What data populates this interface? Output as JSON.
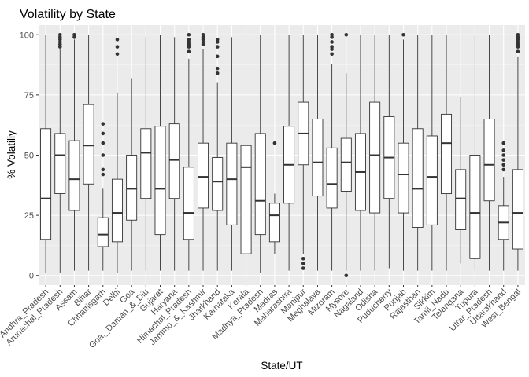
{
  "chart_data": {
    "type": "boxplot",
    "title": "Volatility by State",
    "xlabel": "State/UT",
    "ylabel": "% Volatiliy",
    "ylim": [
      -4,
      104
    ],
    "yticks": [
      0,
      25,
      50,
      75,
      100
    ],
    "grid": true,
    "legend": "none",
    "colors": {
      "panel_background": "#ebebeb",
      "grid_major": "#ffffff",
      "grid_minor": "#f5f5f5",
      "box_fill": "#ffffff",
      "box_line": "#333333",
      "outlier": "#333333",
      "tick_text": "#4d4d4d"
    },
    "categories": [
      "Andhra_Pradesh",
      "Arunachal_Pradesh",
      "Assam",
      "Bihar",
      "Chhattisgarh",
      "Delhi",
      "Goa",
      "Goa,_Daman_&_Diu",
      "Gujarat",
      "Haryana",
      "Himachal_Pradesh",
      "Jammu_&_Kashmir",
      "Jharkhand",
      "Karnataka",
      "Kerala",
      "Madhya_Pradesh",
      "Madras",
      "Maharashtra",
      "Manipur",
      "Meghalaya",
      "Mizoram",
      "Mysore",
      "Nagaland",
      "Odisha",
      "Puducherry",
      "Punjab",
      "Rajasthan",
      "Sikkim",
      "Tamil_Nadu",
      "Telangana",
      "Tripura",
      "Uttar_Pradesh",
      "Uttarakhand",
      "West_Bengal"
    ],
    "boxes": [
      {
        "min": 1,
        "q1": 15,
        "median": 32,
        "q3": 61,
        "max": 100,
        "outliers": []
      },
      {
        "min": 1,
        "q1": 34,
        "median": 50,
        "q3": 59,
        "max": 94,
        "outliers": [
          95,
          96,
          97,
          98,
          99,
          100
        ]
      },
      {
        "min": 2,
        "q1": 27,
        "median": 40,
        "q3": 56,
        "max": 98,
        "outliers": [
          99,
          100
        ]
      },
      {
        "min": 2,
        "q1": 38,
        "median": 54,
        "q3": 71,
        "max": 100,
        "outliers": []
      },
      {
        "min": 2,
        "q1": 12,
        "median": 17,
        "q3": 24,
        "max": 36,
        "outliers": [
          42,
          44,
          50,
          55,
          59,
          63
        ]
      },
      {
        "min": 1,
        "q1": 14,
        "median": 26,
        "q3": 40,
        "max": 76,
        "outliers": [
          92,
          95,
          98
        ]
      },
      {
        "min": 2,
        "q1": 23,
        "median": 36,
        "q3": 50,
        "max": 82,
        "outliers": []
      },
      {
        "min": 2,
        "q1": 32,
        "median": 51,
        "q3": 61,
        "max": 99,
        "outliers": []
      },
      {
        "min": 2,
        "q1": 17,
        "median": 36,
        "q3": 62,
        "max": 100,
        "outliers": []
      },
      {
        "min": 2,
        "q1": 32,
        "median": 48,
        "q3": 63,
        "max": 99,
        "outliers": []
      },
      {
        "min": 2,
        "q1": 15,
        "median": 26,
        "q3": 45,
        "max": 90,
        "outliers": [
          93,
          95,
          96,
          97,
          98,
          100
        ]
      },
      {
        "min": 2,
        "q1": 28,
        "median": 41,
        "q3": 55,
        "max": 94,
        "outliers": [
          96,
          97,
          98,
          99,
          100
        ]
      },
      {
        "min": 2,
        "q1": 27,
        "median": 39,
        "q3": 49,
        "max": 80,
        "outliers": [
          84,
          86,
          91,
          95,
          97,
          98
        ]
      },
      {
        "min": 2,
        "q1": 21,
        "median": 40,
        "q3": 55,
        "max": 99,
        "outliers": []
      },
      {
        "min": 1,
        "q1": 9,
        "median": 45,
        "q3": 54,
        "max": 100,
        "outliers": []
      },
      {
        "min": 1,
        "q1": 17,
        "median": 31,
        "q3": 59,
        "max": 100,
        "outliers": []
      },
      {
        "min": 9,
        "q1": 14,
        "median": 25,
        "q3": 30,
        "max": 34,
        "outliers": [
          55
        ]
      },
      {
        "min": 2,
        "q1": 30,
        "median": 46,
        "q3": 62,
        "max": 100,
        "outliers": []
      },
      {
        "min": 9,
        "q1": 46,
        "median": 59,
        "q3": 72,
        "max": 100,
        "outliers": [
          3,
          5,
          7
        ]
      },
      {
        "min": 2,
        "q1": 33,
        "median": 47,
        "q3": 65,
        "max": 100,
        "outliers": []
      },
      {
        "min": 2,
        "q1": 28,
        "median": 38,
        "q3": 53,
        "max": 88,
        "outliers": [
          92,
          94,
          95,
          97,
          99,
          100
        ]
      },
      {
        "min": 2,
        "q1": 35,
        "median": 47,
        "q3": 57,
        "max": 84,
        "outliers": [
          0,
          100
        ]
      },
      {
        "min": 2,
        "q1": 27,
        "median": 43,
        "q3": 59,
        "max": 100,
        "outliers": []
      },
      {
        "min": 2,
        "q1": 26,
        "median": 50,
        "q3": 72,
        "max": 100,
        "outliers": []
      },
      {
        "min": 3,
        "q1": 32,
        "median": 49,
        "q3": 66,
        "max": 100,
        "outliers": []
      },
      {
        "min": 2,
        "q1": 26,
        "median": 42,
        "q3": 55,
        "max": 98,
        "outliers": [
          100
        ]
      },
      {
        "min": 2,
        "q1": 20,
        "median": 36,
        "q3": 61,
        "max": 100,
        "outliers": []
      },
      {
        "min": 2,
        "q1": 21,
        "median": 41,
        "q3": 58,
        "max": 100,
        "outliers": []
      },
      {
        "min": 2,
        "q1": 34,
        "median": 55,
        "q3": 67,
        "max": 100,
        "outliers": []
      },
      {
        "min": 5,
        "q1": 19,
        "median": 32,
        "q3": 44,
        "max": 74,
        "outliers": []
      },
      {
        "min": 2,
        "q1": 7,
        "median": 26,
        "q3": 50,
        "max": 100,
        "outliers": []
      },
      {
        "min": 2,
        "q1": 31,
        "median": 46,
        "q3": 65,
        "max": 100,
        "outliers": []
      },
      {
        "min": 2,
        "q1": 15,
        "median": 22,
        "q3": 29,
        "max": 41,
        "outliers": [
          44,
          46,
          48,
          50,
          52,
          55
        ]
      },
      {
        "min": 2,
        "q1": 11,
        "median": 26,
        "q3": 44,
        "max": 91,
        "outliers": [
          93,
          95,
          96,
          97,
          98,
          99,
          100
        ]
      }
    ]
  }
}
